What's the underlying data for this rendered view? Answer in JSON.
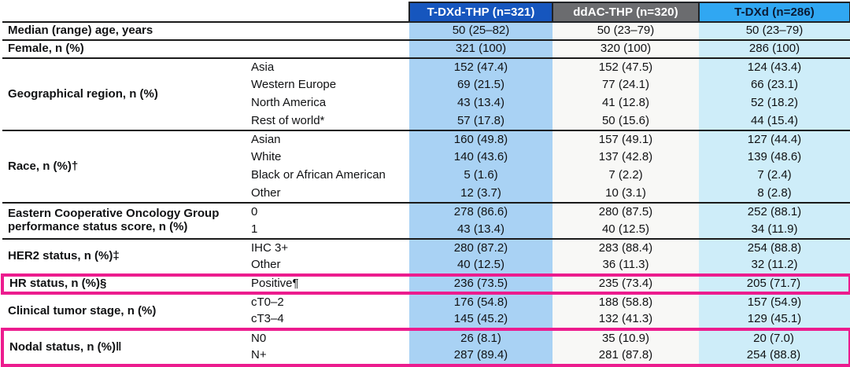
{
  "table": {
    "name": "Baseline characteristics",
    "highlight_color": "#EC1C8E",
    "rule_color": "#1A1A1A",
    "columns": [
      {
        "label": "T-DXd-THP (n=321)",
        "header_bg": "#1656BE",
        "header_text": "#FFFFFF",
        "body_bg": "#A9D2F4"
      },
      {
        "label": "ddAC-THP (n=320)",
        "header_bg": "#6B6C6F",
        "header_text": "#FFFFFF",
        "body_bg": "#F8F8F6"
      },
      {
        "label": "T-DXd (n=286)",
        "header_bg": "#30A7F2",
        "header_text": "#0B1A33",
        "body_bg": "#CEEDF9"
      }
    ],
    "groups": [
      {
        "label": "Median (range) age, years",
        "highlight": false,
        "rows": [
          {
            "sub": "",
            "values": [
              "50 (25–82)",
              "50 (23–79)",
              "50 (23–79)"
            ]
          }
        ]
      },
      {
        "label": "Female, n (%)",
        "highlight": false,
        "rows": [
          {
            "sub": "",
            "values": [
              "321 (100)",
              "320 (100)",
              "286 (100)"
            ]
          }
        ]
      },
      {
        "label": "Geographical region, n (%)",
        "highlight": false,
        "rows": [
          {
            "sub": "Asia",
            "values": [
              "152 (47.4)",
              "152 (47.5)",
              "124 (43.4)"
            ]
          },
          {
            "sub": "Western Europe",
            "values": [
              "69 (21.5)",
              "77 (24.1)",
              "66 (23.1)"
            ]
          },
          {
            "sub": "North America",
            "values": [
              "43 (13.4)",
              "41 (12.8)",
              "52 (18.2)"
            ]
          },
          {
            "sub": "Rest of world*",
            "values": [
              "57 (17.8)",
              "50 (15.6)",
              "44 (15.4)"
            ]
          }
        ]
      },
      {
        "label": "Race, n (%)†",
        "highlight": false,
        "rows": [
          {
            "sub": "Asian",
            "values": [
              "160 (49.8)",
              "157 (49.1)",
              "127 (44.4)"
            ]
          },
          {
            "sub": "White",
            "values": [
              "140 (43.6)",
              "137 (42.8)",
              "139 (48.6)"
            ]
          },
          {
            "sub": "Black or African American",
            "values": [
              "5 (1.6)",
              "7 (2.2)",
              "7 (2.4)"
            ]
          },
          {
            "sub": "Other",
            "values": [
              "12 (3.7)",
              "10 (3.1)",
              "8 (2.8)"
            ]
          }
        ]
      },
      {
        "label": "Eastern Cooperative Oncology Group performance status score, n (%)",
        "highlight": false,
        "rows": [
          {
            "sub": "0",
            "values": [
              "278 (86.6)",
              "280 (87.5)",
              "252 (88.1)"
            ]
          },
          {
            "sub": "1",
            "values": [
              "43 (13.4)",
              "40 (12.5)",
              "34 (11.9)"
            ]
          }
        ]
      },
      {
        "label": "HER2 status, n (%)‡",
        "highlight": false,
        "rows": [
          {
            "sub": "IHC 3+",
            "values": [
              "280 (87.2)",
              "283 (88.4)",
              "254 (88.8)"
            ]
          },
          {
            "sub": "Other",
            "values": [
              "40 (12.5)",
              "36 (11.3)",
              "32 (11.2)"
            ]
          }
        ]
      },
      {
        "label": "HR status, n (%)§",
        "highlight": true,
        "rows": [
          {
            "sub": "Positive¶",
            "values": [
              "236 (73.5)",
              "235 (73.4)",
              "205 (71.7)"
            ]
          }
        ]
      },
      {
        "label": "Clinical tumor stage, n (%)",
        "highlight": false,
        "rows": [
          {
            "sub": "cT0–2",
            "values": [
              "176 (54.8)",
              "188 (58.8)",
              "157 (54.9)"
            ]
          },
          {
            "sub": "cT3–4",
            "values": [
              "145 (45.2)",
              "132 (41.3)",
              "129 (45.1)"
            ]
          }
        ]
      },
      {
        "label": "Nodal status, n (%)‖",
        "highlight": true,
        "rows": [
          {
            "sub": "N0",
            "values": [
              "26 (8.1)",
              "35 (10.9)",
              "20 (7.0)"
            ]
          },
          {
            "sub": "N+",
            "values": [
              "287 (89.4)",
              "281 (87.8)",
              "254 (88.8)"
            ]
          }
        ]
      }
    ]
  }
}
